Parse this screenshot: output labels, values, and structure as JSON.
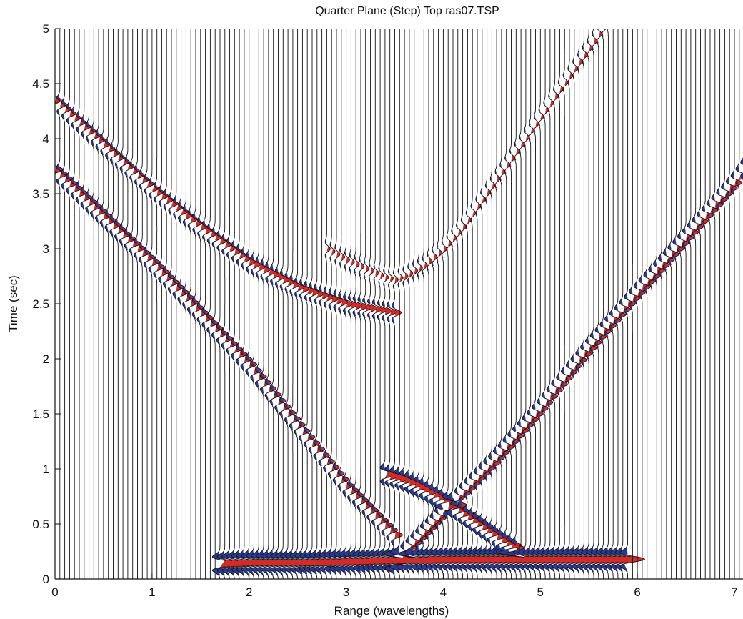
{
  "chart_data": {
    "type": "line",
    "title": "Quarter Plane (Step) Top ras07.TSP",
    "xlabel": "Range (wavelengths)",
    "ylabel": "Time (sec)",
    "xlim": [
      0,
      7.2
    ],
    "ylim": [
      0,
      5
    ],
    "xticks": [
      "0",
      "1",
      "2",
      "3",
      "4",
      "5",
      "6",
      "7"
    ],
    "yticks": [
      "0",
      "0.5",
      "1",
      "1.5",
      "2",
      "2.5",
      "3",
      "3.5",
      "4",
      "4.5",
      "5"
    ],
    "grid": false,
    "trace_spacing": 0.05,
    "colors": {
      "trace": "#111111",
      "positive_lobe": "#d42a2a",
      "negative_lobe": "#2b3a8f",
      "axis": "#111111"
    },
    "series": [
      {
        "x": [
          0,
          0.5,
          1.0,
          1.5,
          2.0,
          2.5,
          3.0,
          3.5
        ],
        "y": [
          3.72,
          3.3,
          2.88,
          2.42,
          1.95,
          1.4,
          0.85,
          0.4
        ],
        "amplitude": 1.0
      },
      {
        "x": [
          0,
          0.5,
          1.0,
          1.5,
          2.0,
          2.5,
          3.0,
          3.5
        ],
        "y": [
          4.35,
          3.95,
          3.55,
          3.2,
          2.88,
          2.65,
          2.5,
          2.42
        ],
        "amplitude": 0.85
      },
      {
        "x": [
          3.5,
          4.0,
          4.5,
          5.0,
          5.5,
          6.0,
          6.5,
          7.0,
          7.2
        ],
        "y": [
          0.15,
          0.6,
          1.05,
          1.55,
          2.1,
          2.6,
          3.1,
          3.6,
          3.85
        ],
        "amplitude": 1.0
      },
      {
        "x": [
          2.8,
          3.0,
          3.2,
          3.4,
          3.5,
          3.6,
          3.8,
          4.0,
          4.2,
          4.4,
          4.6,
          4.8,
          5.0,
          5.2,
          5.4,
          5.6,
          5.8,
          6.0
        ],
        "y": [
          3.0,
          2.9,
          2.82,
          2.74,
          2.72,
          2.75,
          2.85,
          3.0,
          3.2,
          3.45,
          3.7,
          3.95,
          4.2,
          4.45,
          4.7,
          4.95,
          5.2,
          5.45
        ],
        "amplitude": 0.45
      },
      {
        "x": [
          1.7,
          2.0,
          2.5,
          3.0,
          3.5,
          4.0,
          4.5,
          5.0,
          5.5,
          5.9
        ],
        "y": [
          0.14,
          0.15,
          0.15,
          0.16,
          0.17,
          0.18,
          0.18,
          0.18,
          0.18,
          0.18
        ],
        "amplitude": 2.2
      },
      {
        "x": [
          3.4,
          3.6,
          3.8,
          4.0,
          4.2,
          4.4,
          4.6,
          4.8
        ],
        "y": [
          0.95,
          0.9,
          0.82,
          0.72,
          0.6,
          0.48,
          0.36,
          0.25
        ],
        "amplitude": 1.4
      }
    ]
  }
}
